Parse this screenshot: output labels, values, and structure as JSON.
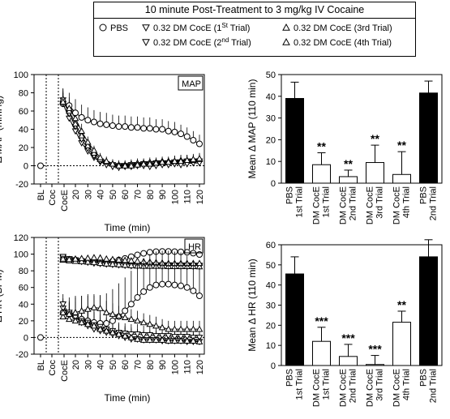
{
  "legend": {
    "title": "10 minute Post-Treatment to 3 mg/kg IV Cocaine",
    "entries": [
      {
        "marker": "circle",
        "label": "PBS"
      },
      {
        "marker": "tri-down",
        "label": "0.32 DM CocE (1",
        "sup": "St",
        "tail": " Trial)"
      },
      {
        "marker": "tri-up",
        "label": "0.32 DM CocE (3rd Trial)"
      },
      {
        "marker": "tri-down",
        "label": "0.32 DM CocE (2",
        "sup": "nd",
        "tail": " Trial)"
      },
      {
        "marker": "tri-up",
        "label": "0.32 DM CocE (4th Trial)"
      }
    ]
  },
  "chart_data": [
    {
      "type": "line",
      "panel_label": "MAP",
      "xlabel": "Time (min)",
      "ylabel": "Δ MAP (mmHg)",
      "ylim": [
        -20,
        100
      ],
      "yticks": [
        -20,
        0,
        20,
        40,
        60,
        80,
        100
      ],
      "xticks": [
        "BL",
        "Coc",
        "CocE",
        "20",
        "30",
        "40",
        "50",
        "60",
        "70",
        "80",
        "90",
        "100",
        "110",
        "120"
      ],
      "x": [
        10,
        15,
        20,
        25,
        30,
        35,
        40,
        45,
        50,
        55,
        60,
        65,
        70,
        75,
        80,
        85,
        90,
        95,
        100,
        105,
        110,
        115,
        120
      ],
      "series": [
        {
          "name": "PBS",
          "marker": "circle",
          "values": [
            68,
            66,
            58,
            53,
            50,
            48,
            46,
            45,
            44,
            43,
            43,
            42,
            42,
            41,
            41,
            40,
            40,
            38,
            37,
            35,
            32,
            28,
            24
          ],
          "errors": [
            12,
            14,
            15,
            14,
            14,
            13,
            13,
            13,
            12,
            12,
            12,
            12,
            12,
            12,
            12,
            11,
            11,
            11,
            11,
            10,
            10,
            10,
            10
          ]
        },
        {
          "name": "0.32 DM CocE (1st Trial)",
          "marker": "tri-down",
          "values": [
            68,
            52,
            38,
            25,
            16,
            9,
            4,
            2,
            1,
            0,
            0,
            1,
            1,
            2,
            2,
            3,
            3,
            3,
            4,
            4,
            5,
            5,
            5
          ],
          "errors": [
            12,
            12,
            10,
            8,
            6,
            5,
            5,
            5,
            5,
            5,
            5,
            5,
            5,
            5,
            5,
            5,
            5,
            5,
            6,
            6,
            6,
            6,
            6
          ]
        },
        {
          "name": "0.32 DM CocE (2nd Trial)",
          "marker": "tri-down",
          "values": [
            72,
            57,
            43,
            29,
            19,
            11,
            5,
            1,
            -1,
            -2,
            -1,
            -1,
            0,
            0,
            -1,
            0,
            1,
            1,
            2,
            1,
            2,
            3,
            3
          ],
          "errors": [
            12,
            12,
            10,
            8,
            6,
            5,
            5,
            5,
            5,
            5,
            5,
            5,
            5,
            5,
            5,
            5,
            5,
            5,
            6,
            6,
            6,
            6,
            6
          ]
        },
        {
          "name": "0.32 DM CocE (3rd Trial)",
          "marker": "tri-up",
          "values": [
            73,
            60,
            46,
            33,
            22,
            14,
            7,
            4,
            2,
            1,
            1,
            2,
            3,
            3,
            4,
            4,
            5,
            5,
            5,
            6,
            6,
            6,
            7
          ],
          "errors": [
            12,
            12,
            10,
            8,
            6,
            5,
            5,
            5,
            5,
            5,
            5,
            5,
            5,
            5,
            5,
            5,
            5,
            5,
            6,
            6,
            6,
            6,
            6
          ]
        },
        {
          "name": "0.32 DM CocE (4th Trial)",
          "marker": "tri-up",
          "values": [
            70,
            63,
            52,
            38,
            26,
            17,
            9,
            5,
            2,
            0,
            0,
            0,
            1,
            2,
            2,
            3,
            4,
            4,
            5,
            5,
            6,
            7,
            8
          ],
          "errors": [
            12,
            12,
            10,
            8,
            6,
            5,
            5,
            5,
            5,
            5,
            5,
            5,
            5,
            5,
            5,
            5,
            5,
            5,
            6,
            6,
            6,
            6,
            6
          ]
        }
      ]
    },
    {
      "type": "bar",
      "ylabel": "Mean Δ MAP (110 min)",
      "ylim": [
        0,
        50
      ],
      "yticks": [
        0,
        10,
        20,
        30,
        40,
        50
      ],
      "categories": [
        [
          "PBS",
          "1st Trial"
        ],
        [
          "DM CocE",
          "1st Trial"
        ],
        [
          "DM CocE",
          "2nd Trial"
        ],
        [
          "DM CocE",
          "3rd Trial"
        ],
        [
          "DM CocE",
          "4th Trial"
        ],
        [
          "PBS",
          "2nd Trial"
        ]
      ],
      "values": [
        39,
        8.5,
        3,
        9.5,
        4,
        41.5
      ],
      "errors": [
        7.5,
        5.5,
        3,
        8,
        10.5,
        5.5
      ],
      "fills": [
        "black",
        "white",
        "white",
        "white",
        "white",
        "black"
      ],
      "annotations": [
        "",
        "**",
        "**",
        "**",
        "**",
        ""
      ]
    },
    {
      "type": "line",
      "panel_label": "HR",
      "xlabel": "Time (min)",
      "ylabel": "Δ HR (BPM)",
      "ylim": [
        -20,
        120
      ],
      "yticks": [
        -20,
        0,
        20,
        40,
        60,
        80,
        100,
        120
      ],
      "xticks": [
        "BL",
        "Coc",
        "CocE",
        "20",
        "30",
        "40",
        "50",
        "60",
        "70",
        "80",
        "90",
        "100",
        "110",
        "120"
      ],
      "x": [
        10,
        15,
        20,
        25,
        30,
        35,
        40,
        45,
        50,
        55,
        60,
        65,
        70,
        75,
        80,
        85,
        90,
        95,
        100,
        105,
        110,
        115,
        120
      ],
      "series": [
        {
          "name": "PBS",
          "marker": "circle",
          "values": [
            30,
            28,
            25,
            22,
            20,
            18,
            17,
            17,
            20,
            25,
            32,
            40,
            48,
            55,
            60,
            63,
            64,
            64,
            63,
            62,
            60,
            56,
            50
          ],
          "errors": [
            15,
            20,
            25,
            28,
            30,
            32,
            34,
            36,
            38,
            40,
            40,
            40,
            40,
            40,
            40,
            40,
            40,
            40,
            40,
            40,
            38,
            36,
            34
          ]
        },
        {
          "name": "0.32 DM CocE (1st Trial)",
          "marker": "tri-down",
          "values": [
            35,
            30,
            25,
            20,
            18,
            15,
            13,
            10,
            8,
            6,
            5,
            4,
            4,
            3,
            3,
            2,
            2,
            2,
            1,
            1,
            1,
            0,
            0
          ],
          "errors": [
            12,
            14,
            18,
            18,
            18,
            16,
            15,
            14,
            13,
            12,
            12,
            12,
            12,
            11,
            11,
            11,
            10,
            10,
            10,
            10,
            10,
            10,
            10
          ]
        },
        {
          "name": "0.32 DM CocE (2nd Trial)",
          "marker": "tri-down",
          "values": [
            40,
            28,
            24,
            18,
            14,
            10,
            8,
            6,
            4,
            2,
            0,
            -2,
            -2,
            -3,
            -3,
            -3,
            -4,
            -4,
            -4,
            -4,
            -5,
            -5,
            -5
          ],
          "errors": [
            12,
            14,
            18,
            18,
            18,
            16,
            15,
            14,
            13,
            12,
            12,
            12,
            12,
            11,
            11,
            11,
            10,
            10,
            10,
            10,
            10,
            10,
            10
          ]
        },
        {
          "name": "0.32 DM CocE (3rd Trial)",
          "marker": "tri-up",
          "values": [
            25,
            22,
            20,
            18,
            16,
            14,
            10,
            8,
            6,
            4,
            2,
            0,
            -2,
            -3,
            -3,
            -3,
            -3,
            -4,
            -4,
            -4,
            -4,
            -4,
            -5
          ],
          "errors": [
            12,
            14,
            18,
            18,
            18,
            16,
            15,
            14,
            13,
            12,
            12,
            12,
            12,
            11,
            11,
            11,
            10,
            10,
            10,
            10,
            10,
            10,
            10
          ]
        },
        {
          "name": "0.32 DM CocE (4th Trial)",
          "marker": "tri-up",
          "values": [
            30,
            28,
            30,
            32,
            34,
            36,
            35,
            30,
            28,
            26,
            24,
            22,
            20,
            18,
            16,
            14,
            12,
            10,
            10,
            10,
            10,
            10,
            10
          ],
          "errors": [
            12,
            14,
            18,
            18,
            18,
            16,
            15,
            14,
            13,
            12,
            12,
            12,
            12,
            11,
            11,
            11,
            10,
            10,
            10,
            10,
            10,
            10,
            10
          ]
        }
      ]
    },
    {
      "type": "bar",
      "ylabel": "Mean Δ HR (110 min)",
      "ylim": [
        0,
        60
      ],
      "yticks": [
        0,
        10,
        20,
        30,
        40,
        50,
        60
      ],
      "categories": [
        [
          "PBS",
          "1st Trial"
        ],
        [
          "DM CocE",
          "1st Trial"
        ],
        [
          "DM CocE",
          "2nd Trial"
        ],
        [
          "DM CocE",
          "3rd Trial"
        ],
        [
          "DM CocE",
          "4th Trial"
        ],
        [
          "PBS",
          "2nd Trial"
        ]
      ],
      "values": [
        45.5,
        12,
        4.5,
        0.5,
        21.5,
        54
      ],
      "errors": [
        8.5,
        7,
        6,
        4.5,
        5.5,
        8.5
      ],
      "fills": [
        "black",
        "white",
        "white",
        "white",
        "white",
        "black"
      ],
      "annotations": [
        "",
        "***",
        "***",
        "***",
        "**",
        ""
      ]
    }
  ]
}
